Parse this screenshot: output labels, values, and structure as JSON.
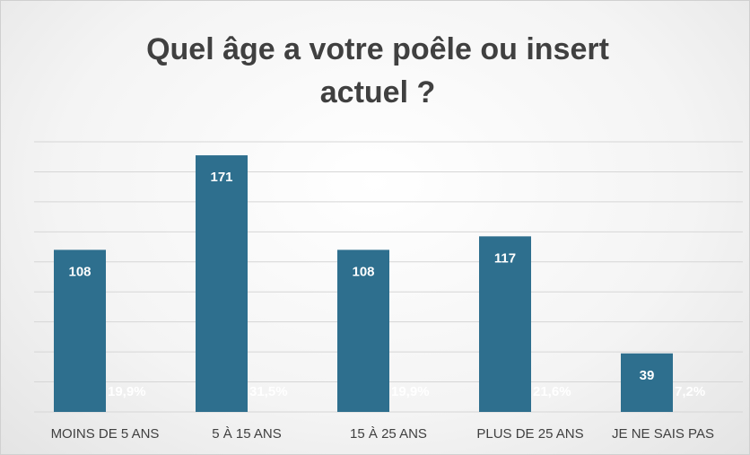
{
  "chart_data": {
    "type": "bar",
    "title": "Quel âge a votre poêle ou insert actuel ?",
    "categories": [
      "MOINS DE 5 ANS",
      "5 À 15 ANS",
      "15 À 25 ANS",
      "PLUS DE 25 ANS",
      "JE NE SAIS PAS"
    ],
    "values": [
      108,
      171,
      108,
      117,
      39
    ],
    "color": "#2e6f8e",
    "shares": {
      "values": [
        19.9,
        31.5,
        19.9,
        21.6,
        7.2
      ],
      "value_labels": [
        "19,9%",
        "31,5%",
        "19,9%",
        "21,6%",
        "7,2%"
      ]
    },
    "ylim": [
      0,
      180
    ],
    "yticks": [
      0,
      20,
      40,
      60,
      80,
      100,
      120,
      140,
      160,
      180
    ],
    "grid": true
  }
}
